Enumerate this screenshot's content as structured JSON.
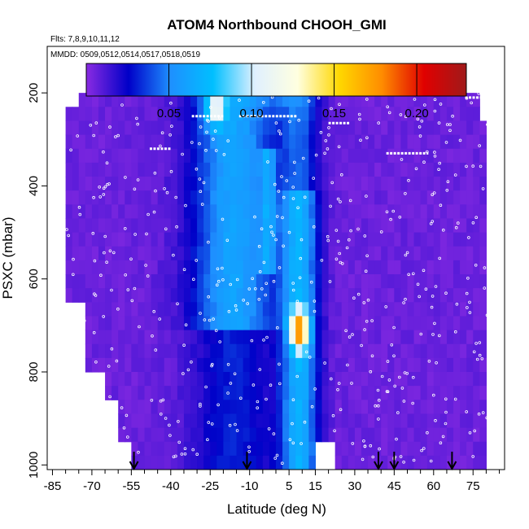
{
  "chart_data": {
    "type": "heatmap",
    "title": "ATOM4 Northbound CHOOH_GMI",
    "flights_note": "Flts: 7,8,9,10,11,12",
    "dates_note": "MMDD: 0509,0512,0514,0517,0518,0519",
    "xlabel": "Latitude (deg N)",
    "ylabel": "PSXC (mbar)",
    "xlim": [
      -87,
      87
    ],
    "ylim": [
      1010,
      100
    ],
    "x_ticks": [
      -85,
      -70,
      -55,
      -40,
      -25,
      -10,
      5,
      15,
      30,
      45,
      60,
      75
    ],
    "x_tick_labels": [
      "-85",
      "-70",
      "-55",
      "-40",
      "-25",
      "-10",
      "5",
      "15",
      "30",
      "45",
      "60",
      "75"
    ],
    "y_ticks": [
      200,
      400,
      600,
      800,
      1000
    ],
    "y_tick_labels": [
      "200",
      "400",
      "600",
      "800",
      "1000"
    ],
    "colorbar": {
      "min": 0.0,
      "max": 0.23,
      "ticks": [
        0.05,
        0.1,
        0.15,
        0.2
      ],
      "tick_labels": [
        "0.05",
        "0.10",
        "0.15",
        "0.20"
      ],
      "stops": [
        "#8a2be2",
        "#0000c8",
        "#1e90ff",
        "#00bfff",
        "#e0f0ff",
        "#ffffe0",
        "#ffd700",
        "#ff8c00",
        "#e00000",
        "#a01a1a"
      ]
    },
    "flight_markers_lat": [
      -54,
      -11,
      39,
      45,
      67
    ],
    "legend": "top"
  }
}
